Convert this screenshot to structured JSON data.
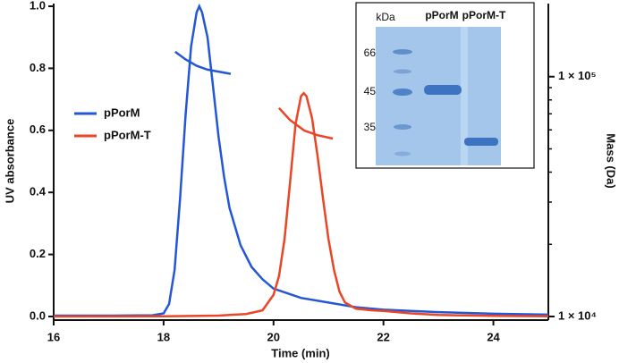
{
  "chart_data": {
    "type": "line",
    "x_label": "Time (min)",
    "y_label": "UV absorbance",
    "y2_label": "Mass (Da)",
    "xlim": [
      16,
      25
    ],
    "xticks": [
      16,
      18,
      20,
      22,
      24
    ],
    "ylim": [
      0,
      1
    ],
    "yticks": [
      {
        "value": 0,
        "label": "0.0"
      },
      0.2,
      0.4,
      0.6,
      0.8,
      {
        "value": 1,
        "label": "1.0"
      }
    ],
    "y2lim": [
      10000,
      200000
    ],
    "y2_log": true,
    "y2ticks": [
      {
        "value": 10000,
        "label": "1 × 10⁴"
      },
      {
        "value": 100000,
        "label": "1 × 10⁵"
      }
    ],
    "y2_minor_ticks": [
      20000,
      30000,
      40000,
      50000,
      60000,
      70000,
      80000,
      90000
    ],
    "legend": "left",
    "series": [
      {
        "name": "pPorM",
        "color": "#2457d6",
        "x": [
          16,
          17,
          17.8,
          18.0,
          18.1,
          18.2,
          18.3,
          18.4,
          18.5,
          18.6,
          18.65,
          18.7,
          18.8,
          18.9,
          19.0,
          19.1,
          19.2,
          19.4,
          19.6,
          19.8,
          20.0,
          20.5,
          21.0,
          21.5,
          22.0,
          23,
          24,
          25
        ],
        "values": [
          0.003,
          0.003,
          0.004,
          0.01,
          0.04,
          0.15,
          0.38,
          0.65,
          0.87,
          0.98,
          1.0,
          0.98,
          0.9,
          0.74,
          0.58,
          0.45,
          0.35,
          0.23,
          0.16,
          0.12,
          0.09,
          0.06,
          0.045,
          0.03,
          0.022,
          0.014,
          0.009,
          0.006
        ],
        "mass": {
          "x": [
            18.21,
            18.4,
            18.6,
            18.8,
            19.0,
            19.22
          ],
          "values": [
            127000,
            118000,
            111000,
            107000,
            105000,
            102700
          ]
        }
      },
      {
        "name": "pPorM-T",
        "color": "#ea4526",
        "x": [
          16,
          18,
          19,
          19.5,
          19.8,
          20.0,
          20.1,
          20.2,
          20.3,
          20.4,
          20.5,
          20.55,
          20.6,
          20.7,
          20.8,
          20.9,
          21.0,
          21.1,
          21.2,
          21.3,
          21.5,
          21.8,
          22,
          22.5,
          23,
          24,
          25
        ],
        "values": [
          0.0,
          0.001,
          0.003,
          0.008,
          0.02,
          0.07,
          0.13,
          0.25,
          0.43,
          0.62,
          0.71,
          0.72,
          0.71,
          0.64,
          0.52,
          0.38,
          0.25,
          0.15,
          0.08,
          0.045,
          0.025,
          0.02,
          0.018,
          0.01,
          0.005,
          0.002,
          0.001
        ],
        "mass": {
          "x": [
            20.1,
            20.3,
            20.56,
            20.8,
            21.08
          ],
          "values": [
            74000,
            66000,
            59600,
            57000,
            55200
          ]
        }
      }
    ],
    "inset": {
      "unit": "kDa",
      "lanes": [
        "pPorM",
        "pPorM-T"
      ],
      "markers": [
        "66",
        "45",
        "35"
      ]
    }
  }
}
